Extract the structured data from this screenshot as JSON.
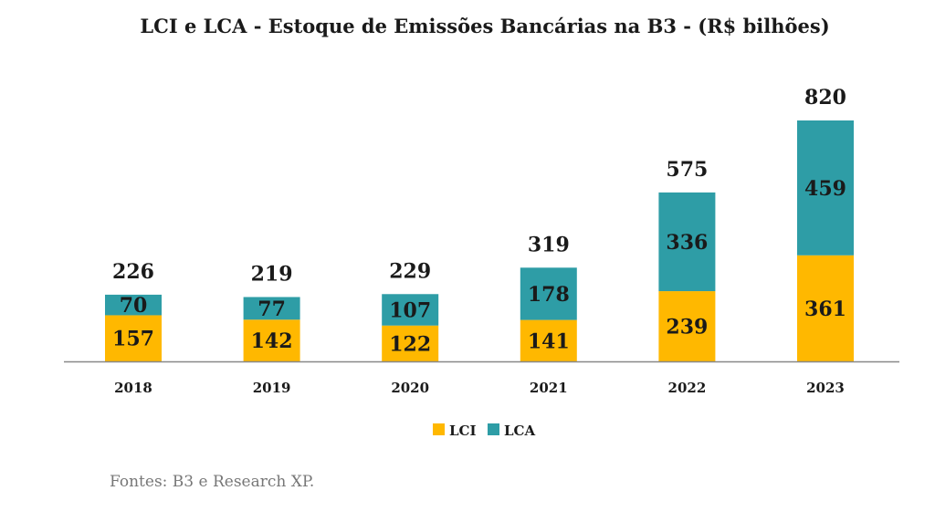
{
  "chart_data": {
    "type": "bar",
    "stacked": true,
    "title": "LCI e LCA - Estoque de Emissões Bancárias na B3 - (R$ bilhões)",
    "categories": [
      "2018",
      "2019",
      "2020",
      "2021",
      "2022",
      "2023"
    ],
    "series": [
      {
        "name": "LCI",
        "color": "#FFB800",
        "values": [
          157,
          142,
          122,
          141,
          239,
          361
        ]
      },
      {
        "name": "LCA",
        "color": "#2E9DA6",
        "values": [
          70,
          77,
          107,
          178,
          336,
          459
        ]
      }
    ],
    "totals": [
      226,
      219,
      229,
      319,
      575,
      820
    ],
    "xlabel": "",
    "ylabel": "",
    "ylim": [
      0,
      820
    ],
    "grid": false,
    "legend": "bottom-center",
    "source": "Fontes: B3 e Research XP."
  }
}
